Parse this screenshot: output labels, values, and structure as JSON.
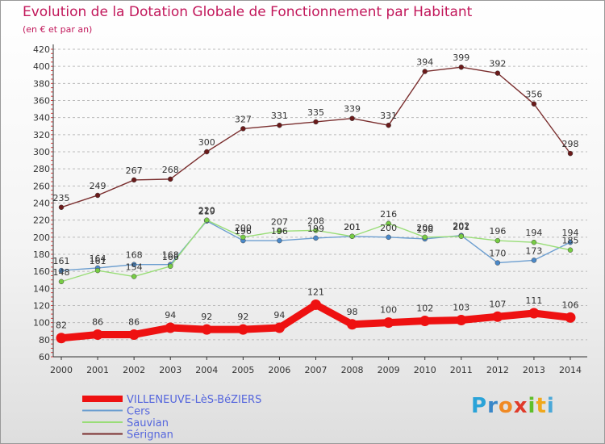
{
  "title": "Evolution de la Dotation Globale de Fonctionnement par Habitant",
  "subtitle": "(en € et par an)",
  "brand": {
    "letters": [
      "P",
      "r",
      "o",
      "x",
      "i",
      "t",
      "i"
    ],
    "letter_colors": [
      "#2aa3d8",
      "#3a87c8",
      "#f08a24",
      "#e03b2a",
      "#5fbf2a",
      "#f0a81c",
      "#4aa8d8"
    ]
  },
  "chart_data": {
    "type": "line",
    "title": "Evolution de la Dotation Globale de Fonctionnement par Habitant",
    "subtitle": "(en € et par an)",
    "xlabel": "",
    "ylabel": "",
    "x": [
      "2000",
      "2001",
      "2002",
      "2003",
      "2004",
      "2005",
      "2006",
      "2007",
      "2008",
      "2009",
      "2010",
      "2011",
      "2012",
      "2013",
      "2014"
    ],
    "ylim": [
      60,
      420
    ],
    "yticks": [
      60,
      80,
      100,
      120,
      140,
      160,
      180,
      200,
      220,
      240,
      260,
      280,
      300,
      320,
      340,
      360,
      380,
      400,
      420
    ],
    "grid": "horizontal dashed",
    "legend_position": "bottom-left",
    "series": [
      {
        "name": "VILLENEUVE-LèS-BéZIERS",
        "color": "#ee1111",
        "marker_color": "#ee1111",
        "emphasis": true,
        "values": [
          82,
          86,
          86,
          94,
          92,
          92,
          94,
          121,
          98,
          100,
          102,
          103,
          107,
          111,
          106
        ]
      },
      {
        "name": "Cers",
        "color": "#6c9ed0",
        "marker_color": "#4a88c8",
        "emphasis": false,
        "values": [
          161,
          164,
          168,
          168,
          219,
          196,
          196,
          199,
          201,
          200,
          198,
          202,
          170,
          173,
          194
        ]
      },
      {
        "name": "Sauvian",
        "color": "#99dd77",
        "marker_color": "#77cc44",
        "emphasis": false,
        "values": [
          148,
          161,
          154,
          166,
          220,
          200,
          207,
          208,
          201,
          216,
          200,
          201,
          196,
          194,
          185
        ]
      },
      {
        "name": "Sérignan",
        "color": "#7a2e2e",
        "marker_color": "#6a1a1a",
        "emphasis": false,
        "values": [
          235,
          249,
          267,
          268,
          300,
          327,
          331,
          335,
          339,
          331,
          394,
          399,
          392,
          356,
          298
        ]
      }
    ],
    "label_colors": {
      "Cers": "#4a88c8",
      "Sauvian": "#66bb33",
      "Sérignan": "#6a1a1a",
      "default": "#333333"
    }
  }
}
